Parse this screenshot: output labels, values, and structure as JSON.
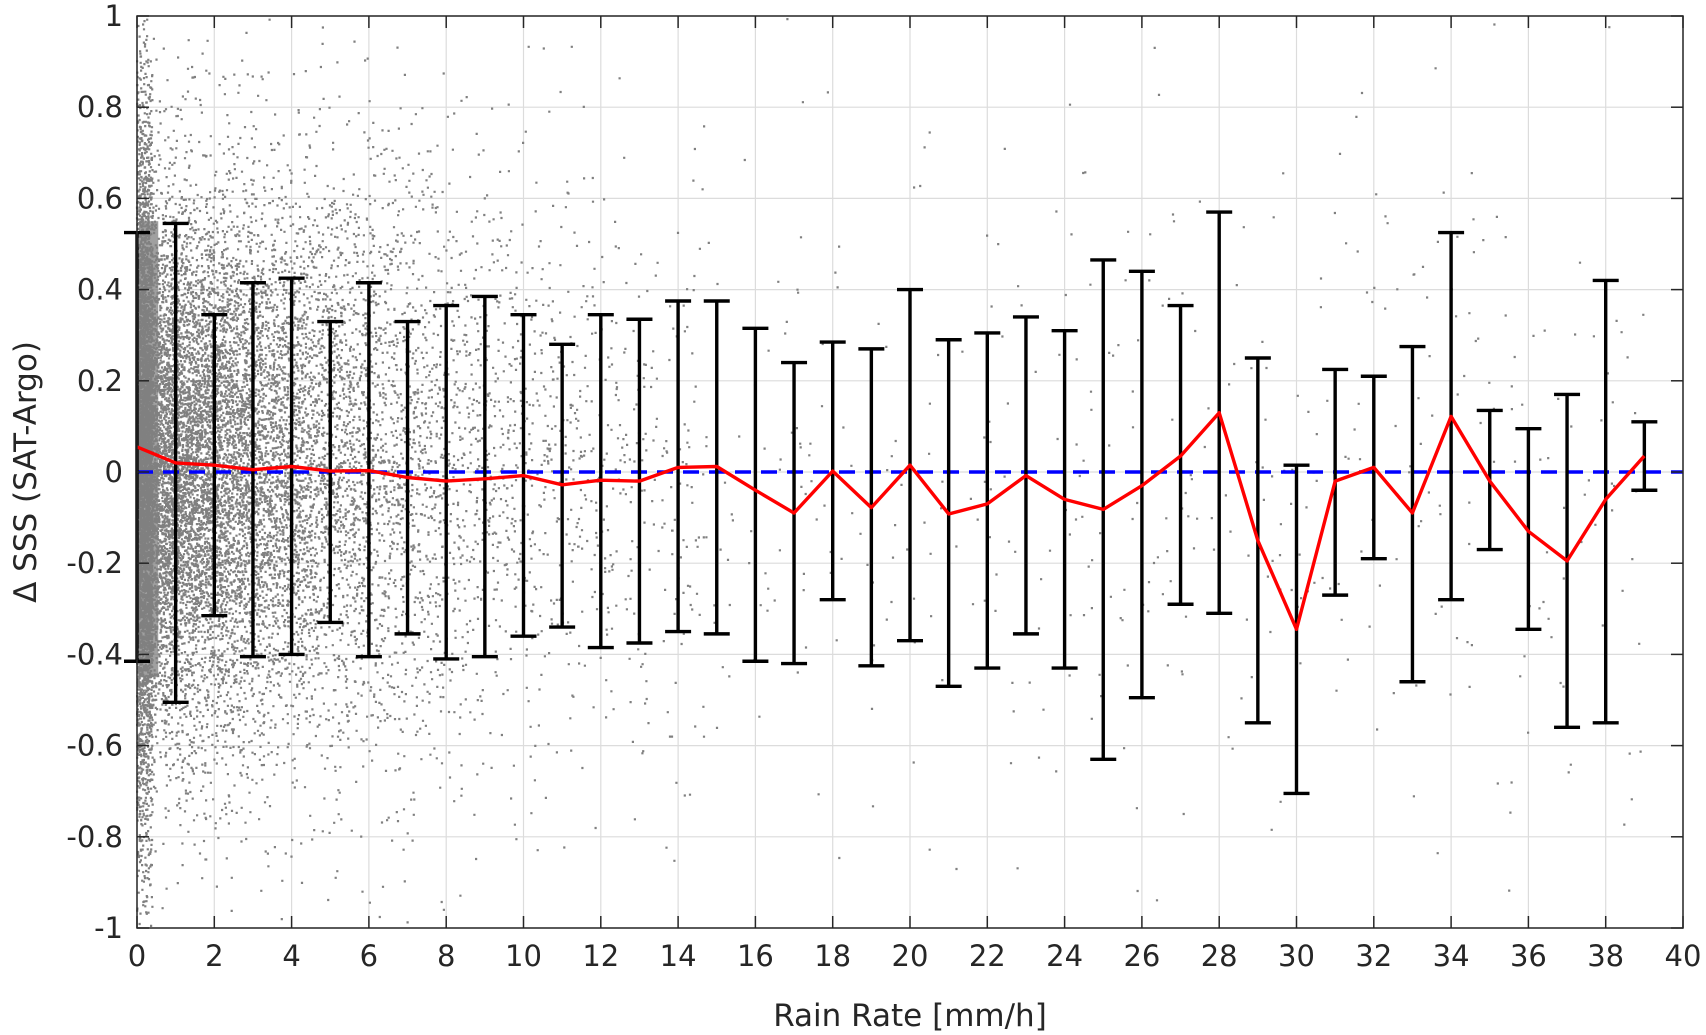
{
  "chart_data": {
    "type": "scatter",
    "title": "",
    "xlabel": "Rain Rate [mm/h]",
    "ylabel": "Δ SSS (SAT-Argo)",
    "xlim": [
      0,
      40
    ],
    "ylim": [
      -1,
      1
    ],
    "xticks": [
      0,
      2,
      4,
      6,
      8,
      10,
      12,
      14,
      16,
      18,
      20,
      22,
      24,
      26,
      28,
      30,
      32,
      34,
      36,
      38,
      40
    ],
    "xtick_labels": [
      "0",
      "2",
      "4",
      "6",
      "8",
      "10",
      "12",
      "14",
      "16",
      "18",
      "20",
      "22",
      "24",
      "26",
      "28",
      "30",
      "32",
      "34",
      "36",
      "38",
      "40"
    ],
    "yticks": [
      -1,
      -0.8,
      -0.6,
      -0.4,
      -0.2,
      0,
      0.2,
      0.4,
      0.6,
      0.8,
      1
    ],
    "ytick_labels": [
      "-1",
      "-0.8",
      "-0.6",
      "-0.4",
      "-0.2",
      "0",
      "0.2",
      "0.4",
      "0.6",
      "0.8",
      "1"
    ],
    "grid": true,
    "legend": "none",
    "colors": {
      "scatter": "#808080",
      "mean_line": "#ff0000",
      "error_bars": "#000000",
      "zero_line": "#0000ff",
      "grid": "#dcdcdc",
      "axes": "#262626"
    },
    "series": [
      {
        "kind": "binned-mean-with-error-bars",
        "x": [
          0,
          1,
          2,
          3,
          4,
          5,
          6,
          7,
          8,
          9,
          10,
          11,
          12,
          13,
          14,
          15,
          16,
          17,
          18,
          19,
          20,
          21,
          22,
          23,
          24,
          25,
          26,
          27,
          28,
          29,
          30,
          31,
          32,
          33,
          34,
          35,
          36,
          37,
          38,
          39
        ],
        "mean": [
          0.055,
          0.02,
          0.015,
          0.005,
          0.012,
          0.002,
          0.003,
          -0.012,
          -0.02,
          -0.015,
          -0.008,
          -0.028,
          -0.018,
          -0.02,
          0.01,
          0.012,
          -0.04,
          -0.09,
          0.002,
          -0.078,
          0.015,
          -0.092,
          -0.07,
          -0.008,
          -0.06,
          -0.082,
          -0.03,
          0.035,
          0.13,
          -0.15,
          -0.345,
          -0.02,
          0.01,
          -0.09,
          0.122,
          -0.02,
          -0.13,
          -0.195,
          -0.06,
          0.035
        ],
        "upper": [
          0.525,
          0.545,
          0.345,
          0.415,
          0.425,
          0.33,
          0.415,
          0.33,
          0.365,
          0.385,
          0.345,
          0.28,
          0.345,
          0.335,
          0.375,
          0.375,
          0.315,
          0.24,
          0.285,
          0.27,
          0.4,
          0.29,
          0.305,
          0.34,
          0.31,
          0.465,
          0.44,
          0.365,
          0.57,
          0.25,
          0.015,
          0.225,
          0.21,
          0.275,
          0.525,
          0.135,
          0.095,
          0.17,
          0.42,
          0.11
        ],
        "lower": [
          -0.415,
          -0.505,
          -0.315,
          -0.405,
          -0.4,
          -0.33,
          -0.405,
          -0.355,
          -0.41,
          -0.405,
          -0.36,
          -0.34,
          -0.385,
          -0.375,
          -0.35,
          -0.355,
          -0.415,
          -0.42,
          -0.28,
          -0.425,
          -0.37,
          -0.47,
          -0.43,
          -0.355,
          -0.43,
          -0.63,
          -0.495,
          -0.29,
          -0.31,
          -0.55,
          -0.705,
          -0.27,
          -0.19,
          -0.46,
          -0.28,
          -0.17,
          -0.345,
          -0.56,
          -0.55,
          -0.04
        ]
      },
      {
        "kind": "reference-line",
        "y": 0,
        "style": "dashed"
      }
    ]
  }
}
